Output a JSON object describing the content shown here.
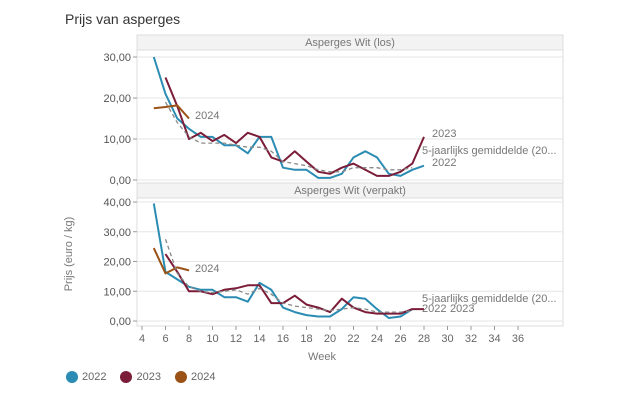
{
  "page": {
    "title": "Prijs van asperges"
  },
  "chart_data": {
    "type": "line",
    "title": "Prijs van asperges",
    "xlabel": "Week",
    "ylabel": "Prijs (euro / kg)",
    "x_ticks": [
      4,
      6,
      8,
      10,
      12,
      14,
      16,
      18,
      20,
      22,
      24,
      26,
      28,
      30,
      32,
      34,
      36
    ],
    "xlim": [
      4,
      36
    ],
    "legend": {
      "placement": "bottom-left",
      "entries": [
        {
          "name": "2022",
          "color": "#2b8cb3"
        },
        {
          "name": "2023",
          "color": "#7b1c38"
        },
        {
          "name": "2024",
          "color": "#9a5216"
        }
      ]
    },
    "panels": [
      {
        "title": "Asperges Wit (los)",
        "ylim": [
          0,
          30
        ],
        "y_ticks": [
          0,
          10,
          20,
          30
        ],
        "y_tick_labels": [
          "0,00",
          "10,00",
          "20,00",
          "30,00"
        ],
        "series": [
          {
            "name": "2022",
            "color": "#2b8cb3",
            "style": "solid",
            "end_label": "2022",
            "x": [
              5,
              6,
              7,
              8,
              9,
              10,
              11,
              12,
              13,
              14,
              15,
              16,
              17,
              18,
              19,
              20,
              21,
              22,
              23,
              24,
              25,
              26,
              27,
              28
            ],
            "values": [
              30,
              21,
              15,
              12.5,
              10.5,
              10.5,
              8.5,
              8.5,
              6.5,
              10.5,
              10.5,
              3,
              2.5,
              2.5,
              0.5,
              0.5,
              1.5,
              5.5,
              7,
              5.5,
              1.5,
              1,
              2.5,
              3.5
            ]
          },
          {
            "name": "2023",
            "color": "#7b1c38",
            "style": "solid",
            "end_label": "2023",
            "x": [
              6,
              7,
              8,
              9,
              10,
              11,
              12,
              13,
              14,
              15,
              16,
              17,
              18,
              19,
              20,
              21,
              22,
              23,
              24,
              25,
              26,
              27,
              28
            ],
            "values": [
              25,
              18,
              10,
              11.5,
              9.5,
              11,
              9,
              11.5,
              10.5,
              5.5,
              4.5,
              7,
              4.5,
              2,
              1.5,
              3,
              4,
              2.5,
              1,
              1,
              2,
              4,
              10.5
            ]
          },
          {
            "name": "2024",
            "color": "#9a5216",
            "style": "solid",
            "end_label": "2024",
            "x": [
              5,
              6,
              7,
              8
            ],
            "values": [
              17.5,
              17.8,
              18.2,
              15
            ]
          },
          {
            "name": "5-jaarlijks gemiddelde (20...",
            "color": "#888888",
            "style": "dashed",
            "end_label": "5-jaarlijks gemiddelde (20...",
            "x": [
              6,
              7,
              8,
              9,
              10,
              11,
              12,
              13,
              14,
              15,
              16,
              17,
              18,
              19,
              20,
              21,
              22,
              23,
              24,
              25,
              26,
              27
            ],
            "values": [
              19,
              14,
              10.5,
              9,
              9,
              9,
              8.5,
              8,
              8,
              7,
              4.5,
              4,
              3.5,
              2.5,
              2,
              2,
              3,
              3,
              3,
              2.5,
              2.5,
              3
            ]
          }
        ]
      },
      {
        "title": "Asperges Wit (verpakt)",
        "ylim": [
          0,
          40
        ],
        "y_ticks": [
          0,
          10,
          20,
          30,
          40
        ],
        "y_tick_labels": [
          "0,00",
          "10,00",
          "20,00",
          "30,00",
          "40,00"
        ],
        "series": [
          {
            "name": "2022",
            "color": "#2b8cb3",
            "style": "solid",
            "end_label": "2022",
            "x": [
              5,
              6,
              7,
              8,
              9,
              10,
              11,
              12,
              13,
              14,
              15,
              16,
              17,
              18,
              19,
              20,
              21,
              22,
              23,
              24,
              25,
              26,
              27
            ],
            "values": [
              39.5,
              16.5,
              14,
              11.5,
              10.5,
              10.5,
              8,
              8,
              6.5,
              12.8,
              10.5,
              4.5,
              3,
              2,
              1.5,
              1.5,
              4,
              8,
              7.5,
              4,
              1,
              1.5,
              4
            ]
          },
          {
            "name": "2023",
            "color": "#7b1c38",
            "style": "solid",
            "end_label": "2023",
            "x": [
              6,
              7,
              8,
              9,
              10,
              11,
              12,
              13,
              14,
              15,
              16,
              17,
              18,
              19,
              20,
              21,
              22,
              23,
              24,
              25,
              26,
              27,
              28
            ],
            "values": [
              22.5,
              16.5,
              10,
              10,
              9,
              10.5,
              11,
              12,
              12,
              6,
              6,
              8.5,
              5.5,
              4.5,
              3,
              7.5,
              4.5,
              3,
              2.5,
              2.5,
              2.5,
              4,
              4
            ]
          },
          {
            "name": "2024",
            "color": "#9a5216",
            "style": "solid",
            "end_label": "2024",
            "x": [
              5,
              6,
              7,
              8
            ],
            "values": [
              24.5,
              16,
              18,
              17
            ]
          },
          {
            "name": "5-jaarlijks gemiddelde (20...",
            "color": "#888888",
            "style": "dashed",
            "end_label": "5-jaarlijks gemiddelde (20...",
            "x": [
              6,
              7,
              8,
              9,
              10,
              11,
              12,
              13,
              14,
              15,
              16,
              17,
              18,
              19,
              20,
              21,
              22,
              23,
              24,
              25,
              26,
              27
            ],
            "values": [
              27.5,
              16,
              11.5,
              10,
              9.5,
              10,
              10.5,
              9,
              11,
              9,
              6,
              5,
              4.5,
              4,
              3.5,
              4,
              4.5,
              4,
              3,
              3,
              3,
              3.5
            ]
          }
        ]
      }
    ]
  }
}
